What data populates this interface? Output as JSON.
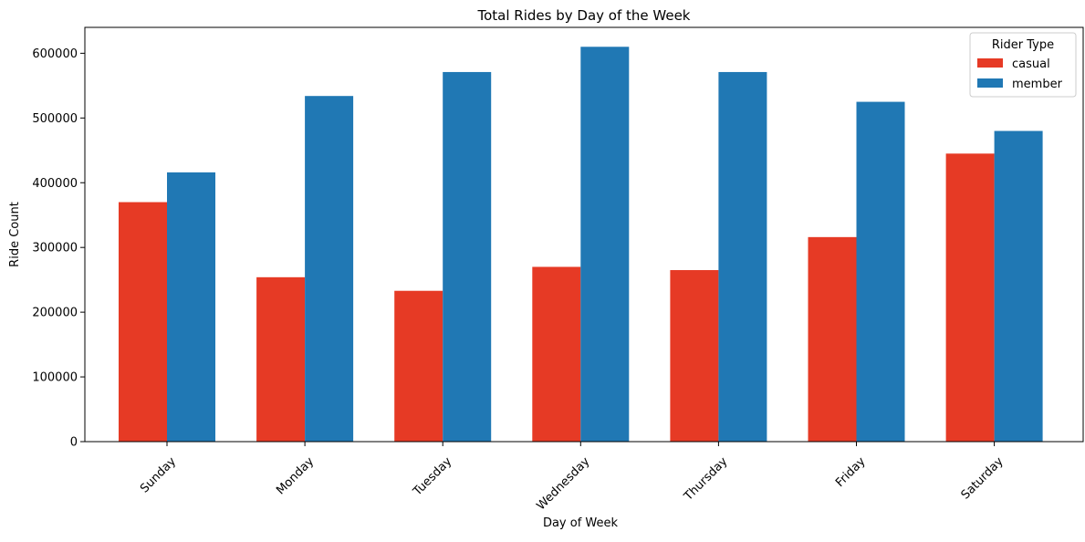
{
  "chart_data": {
    "type": "bar",
    "title": "Total Rides by Day of the Week",
    "xlabel": "Day of Week",
    "ylabel": "Ride Count",
    "categories": [
      "Sunday",
      "Monday",
      "Tuesday",
      "Wednesday",
      "Thursday",
      "Friday",
      "Saturday"
    ],
    "series": [
      {
        "name": "casual",
        "color": "#e63a25",
        "values": [
          370000,
          254000,
          233000,
          270000,
          265000,
          316000,
          445000
        ]
      },
      {
        "name": "member",
        "color": "#2078b4",
        "values": [
          416000,
          534000,
          571000,
          610000,
          571000,
          525000,
          480000
        ]
      }
    ],
    "ylim": [
      0,
      640000
    ],
    "yticks": [
      0,
      100000,
      200000,
      300000,
      400000,
      500000,
      600000
    ],
    "ytick_labels": [
      "0",
      "100000",
      "200000",
      "300000",
      "400000",
      "500000",
      "600000"
    ],
    "legend": {
      "title": "Rider Type",
      "position": "top-right"
    },
    "grid": false
  }
}
